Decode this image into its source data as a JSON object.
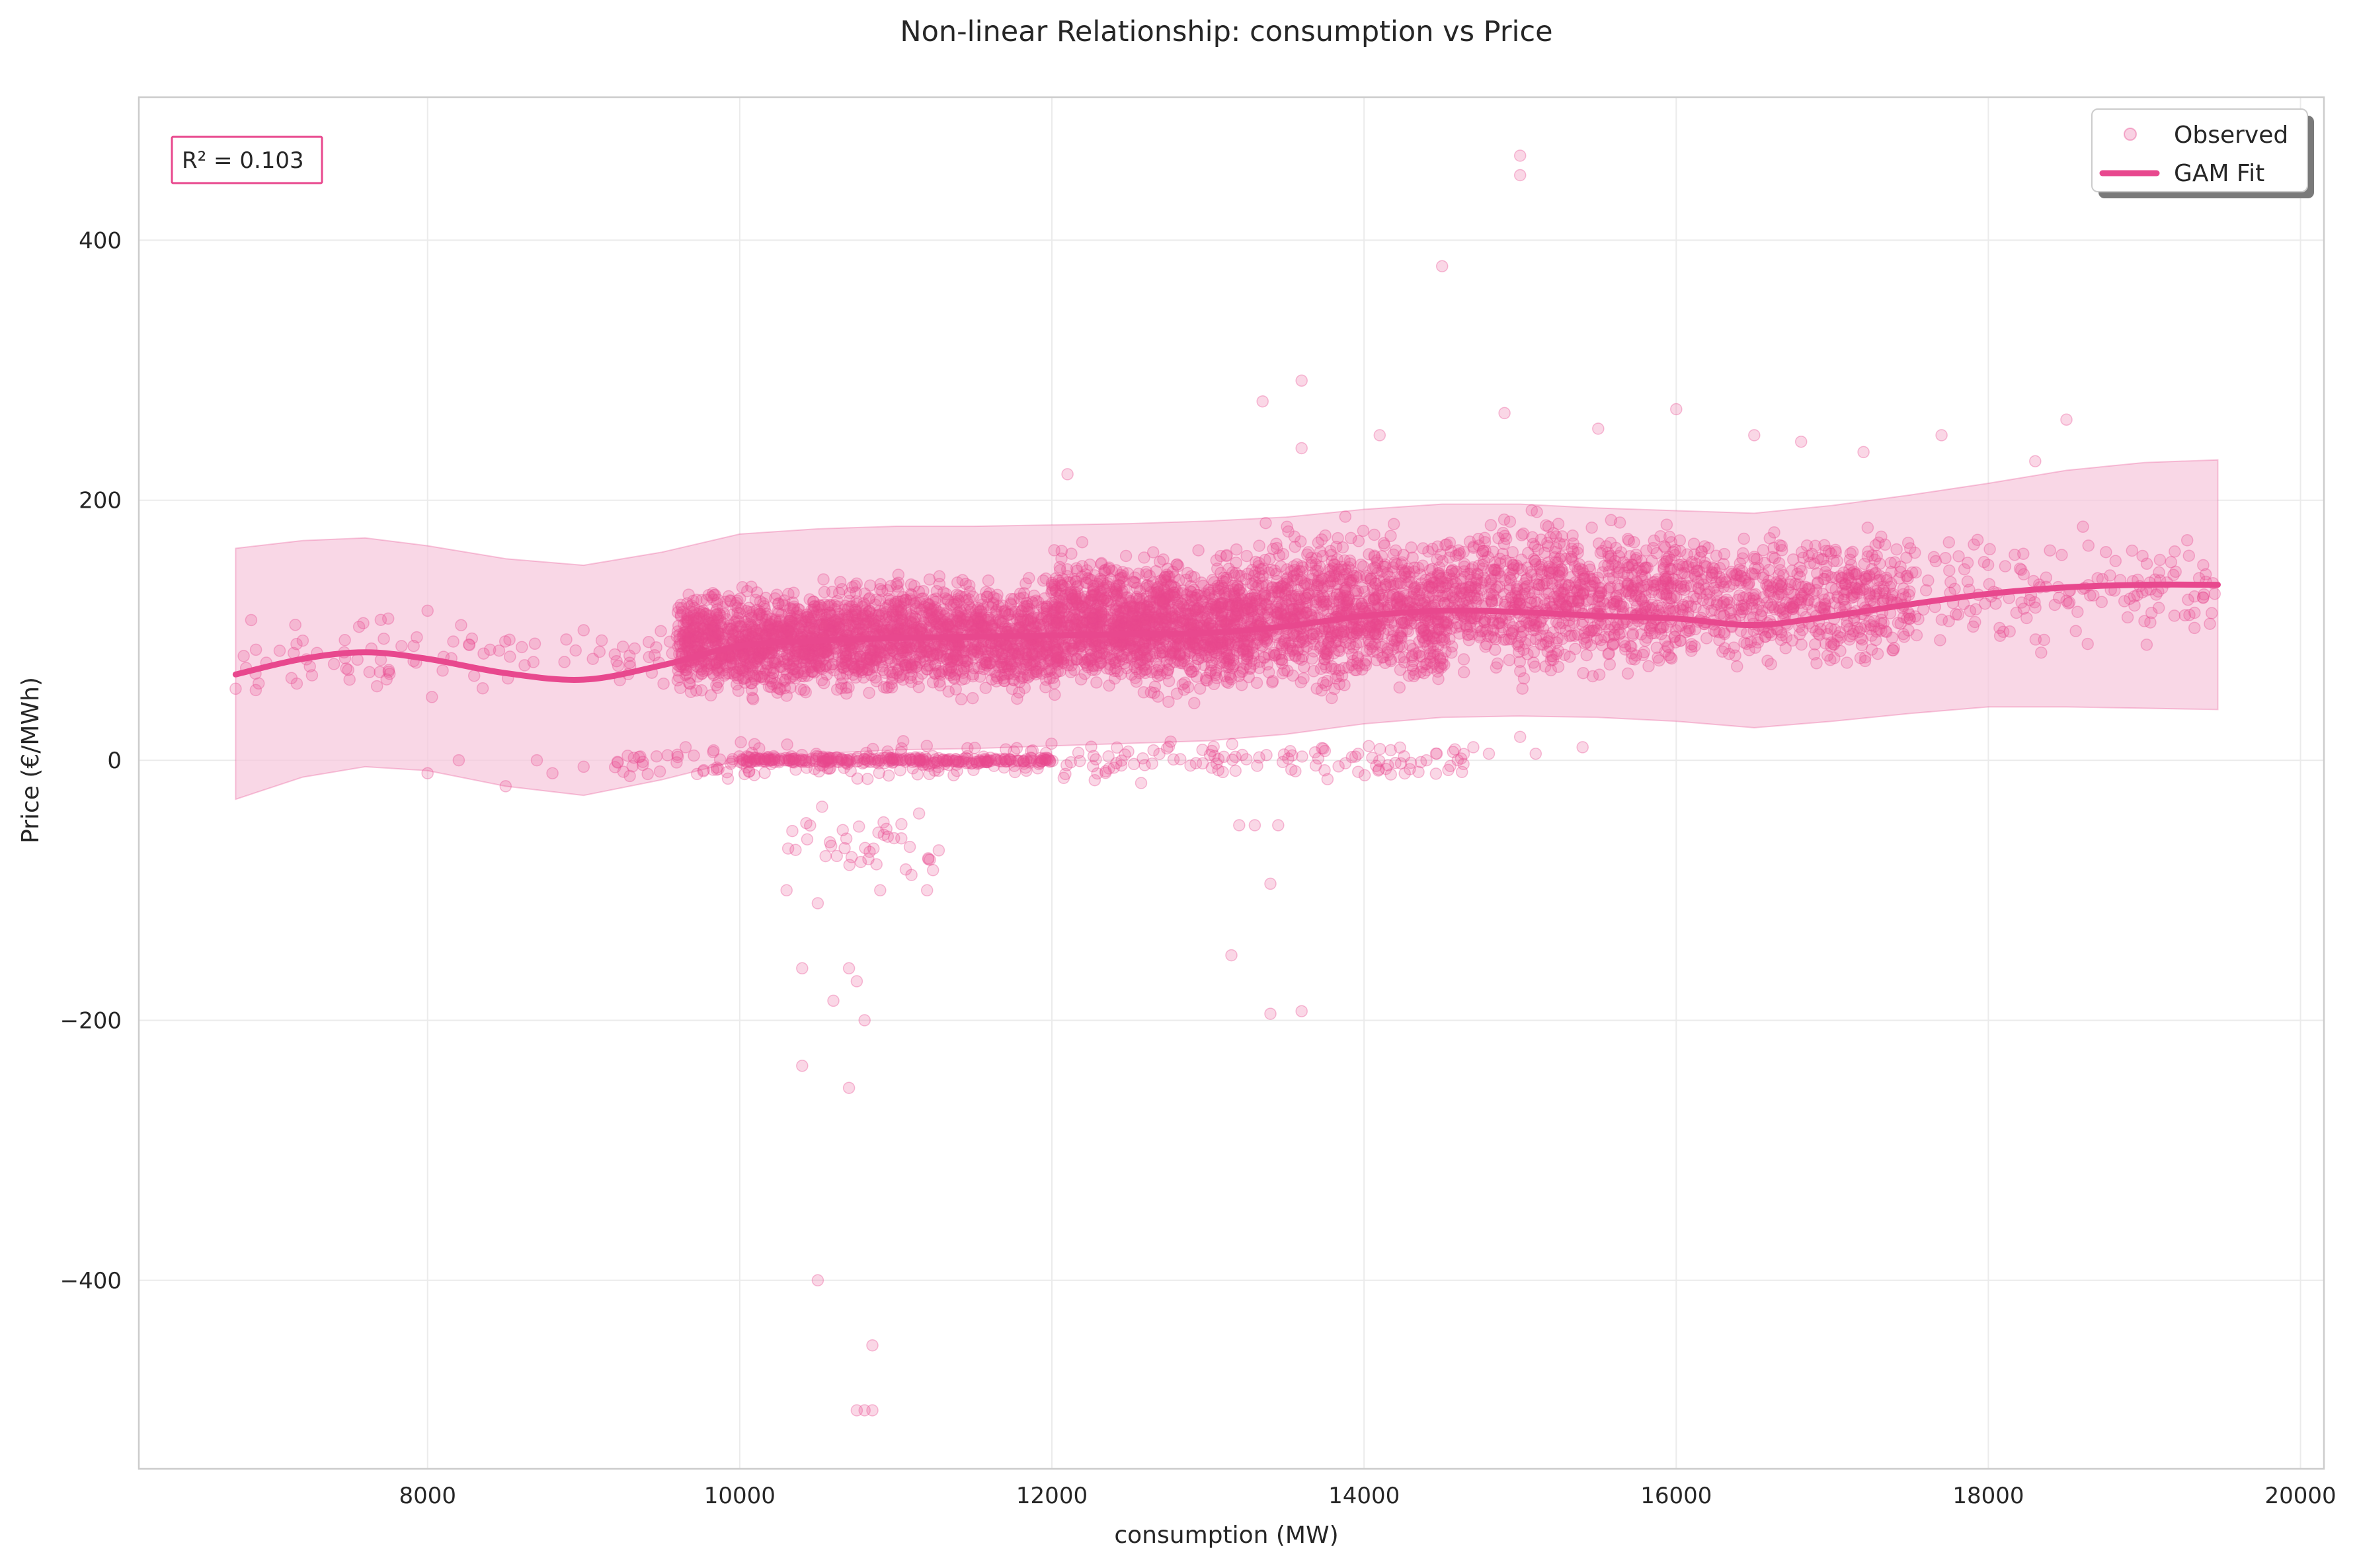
{
  "chart_data": {
    "type": "scatter",
    "title": "Non-linear Relationship: consumption vs Price",
    "xlabel": "consumption (MW)",
    "ylabel": "Price (€/MWh)",
    "xlim": [
      6150,
      20150
    ],
    "ylim": [
      -545,
      510
    ],
    "xticks": [
      8000,
      10000,
      12000,
      14000,
      16000,
      18000,
      20000
    ],
    "yticks": [
      -400,
      -200,
      0,
      200,
      400
    ],
    "ytick_labels": [
      "−400",
      "−200",
      "0",
      "200",
      "400"
    ],
    "grid": true,
    "legend_position": "top-right",
    "annotation": "R² = 0.103",
    "colors": {
      "accent": "#e8488e",
      "band": "#f7c6dc",
      "grid": "#ebebeb",
      "spine": "#cccccc"
    },
    "series": [
      {
        "name": "Observed",
        "kind": "scatter",
        "clusters": [
          {
            "x": [
              9600,
              10500
            ],
            "y": [
              40,
              140
            ],
            "n": 900
          },
          {
            "x": [
              10500,
              12000
            ],
            "y": [
              40,
              150
            ],
            "n": 1400
          },
          {
            "x": [
              12000,
              13300
            ],
            "y": [
              40,
              170
            ],
            "n": 1500
          },
          {
            "x": [
              13300,
              14500
            ],
            "y": [
              40,
              190
            ],
            "n": 1000
          },
          {
            "x": [
              14500,
              16000
            ],
            "y": [
              50,
              200
            ],
            "n": 900
          },
          {
            "x": [
              16000,
              17500
            ],
            "y": [
              60,
              190
            ],
            "n": 600
          },
          {
            "x": [
              17500,
              19450
            ],
            "y": [
              70,
              190
            ],
            "n": 150
          },
          {
            "x": [
              6800,
              9600
            ],
            "y": [
              40,
              120
            ],
            "n": 90
          },
          {
            "x": [
              10000,
              12000
            ],
            "y": [
              -4,
              4
            ],
            "n": 250
          },
          {
            "x": [
              9200,
              14700
            ],
            "y": [
              -20,
              20
            ],
            "n": 250
          },
          {
            "x": [
              10200,
              11300
            ],
            "y": [
              -110,
              -20
            ],
            "n": 40
          }
        ],
        "points": [
          [
            15000,
            465
          ],
          [
            15000,
            450
          ],
          [
            14500,
            380
          ],
          [
            13600,
            292
          ],
          [
            13350,
            276
          ],
          [
            14900,
            267
          ],
          [
            16000,
            270
          ],
          [
            18500,
            262
          ],
          [
            8000,
            -10
          ],
          [
            8200,
            0
          ],
          [
            8500,
            -20
          ],
          [
            8700,
            0
          ],
          [
            8800,
            -10
          ],
          [
            9000,
            -5
          ],
          [
            10300,
            -100
          ],
          [
            10500,
            -110
          ],
          [
            10900,
            -100
          ],
          [
            11200,
            -100
          ],
          [
            10400,
            -160
          ],
          [
            10700,
            -160
          ],
          [
            10600,
            -185
          ],
          [
            10750,
            -170
          ],
          [
            10800,
            -200
          ],
          [
            10400,
            -235
          ],
          [
            10700,
            -252
          ],
          [
            10500,
            -400
          ],
          [
            10850,
            -450
          ],
          [
            10750,
            -500
          ],
          [
            10800,
            -500
          ],
          [
            10850,
            -500
          ],
          [
            13150,
            -150
          ],
          [
            13400,
            -195
          ],
          [
            13600,
            -193
          ],
          [
            13400,
            -95
          ],
          [
            13300,
            -50
          ],
          [
            13450,
            -50
          ],
          [
            13200,
            -50
          ],
          [
            15000,
            18
          ],
          [
            15400,
            10
          ],
          [
            15100,
            5
          ],
          [
            14800,
            5
          ],
          [
            14700,
            10
          ],
          [
            14400,
            0
          ],
          [
            14600,
            0
          ],
          [
            14300,
            -2
          ],
          [
            6770,
            55
          ],
          [
            6900,
            85
          ],
          [
            7200,
            92
          ],
          [
            7500,
            62
          ],
          [
            7700,
            108
          ],
          [
            8000,
            115
          ],
          [
            8400,
            85
          ],
          [
            9000,
            100
          ],
          [
            18300,
            230
          ],
          [
            18700,
            140
          ],
          [
            19000,
            107
          ],
          [
            19200,
            145
          ],
          [
            19450,
            128
          ],
          [
            19350,
            140
          ],
          [
            17700,
            250
          ],
          [
            17200,
            237
          ],
          [
            16500,
            250
          ],
          [
            16800,
            245
          ],
          [
            12100,
            220
          ],
          [
            13600,
            240
          ],
          [
            14100,
            250
          ],
          [
            15500,
            255
          ]
        ]
      },
      {
        "name": "GAM Fit",
        "kind": "line",
        "x": [
          6770,
          7200,
          7600,
          8000,
          8500,
          9000,
          9500,
          10000,
          10500,
          11000,
          11500,
          12000,
          12500,
          13000,
          13500,
          14000,
          14500,
          15000,
          15500,
          16000,
          16500,
          17000,
          17500,
          18000,
          18500,
          19000,
          19470
        ],
        "y": [
          66,
          78,
          83,
          78,
          67,
          62,
          73,
          88,
          92,
          94,
          95,
          96,
          97,
          98,
          103,
          111,
          115,
          114,
          111,
          109,
          104,
          111,
          120,
          128,
          133,
          135,
          135
        ],
        "band_lower": [
          -30,
          -13,
          -5,
          -8,
          -20,
          -27,
          -15,
          0,
          5,
          8,
          9,
          11,
          13,
          15,
          20,
          28,
          33,
          34,
          33,
          30,
          25,
          30,
          36,
          41,
          41,
          40,
          39
        ],
        "band_upper": [
          163,
          169,
          171,
          165,
          155,
          150,
          160,
          174,
          178,
          180,
          180,
          181,
          182,
          184,
          187,
          193,
          197,
          197,
          194,
          192,
          190,
          196,
          204,
          213,
          223,
          229,
          231
        ]
      }
    ]
  }
}
